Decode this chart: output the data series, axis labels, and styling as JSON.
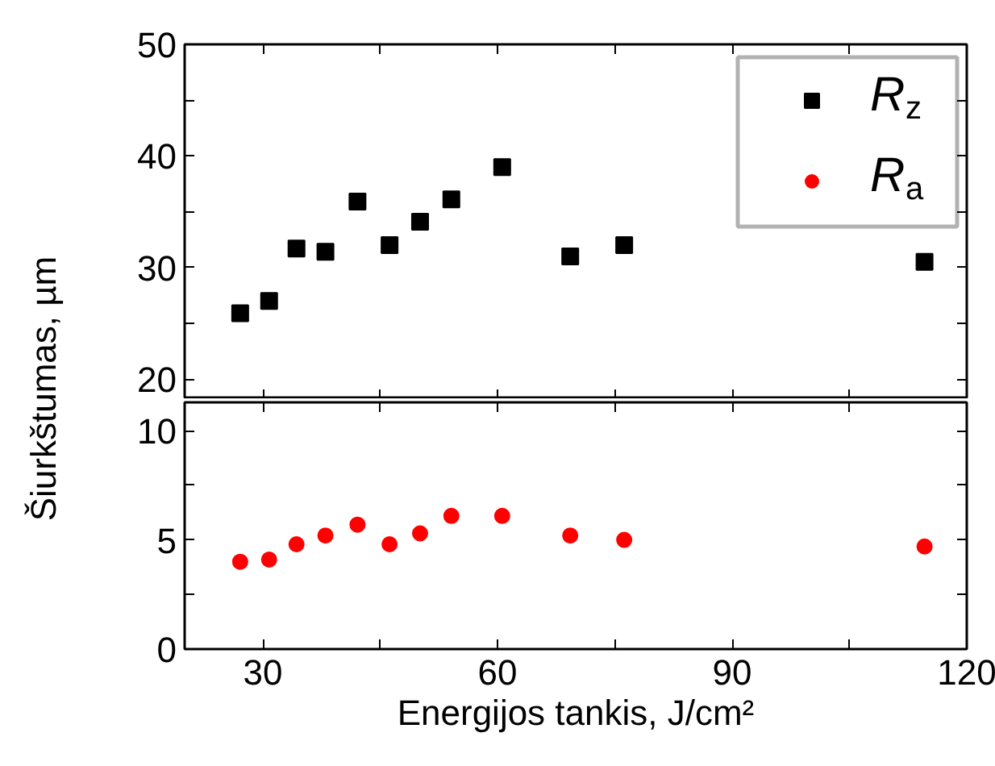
{
  "chart_data": [
    {
      "type": "scatter",
      "ylabel": "Šiurkštumas, µm",
      "xlim": [
        20,
        120
      ],
      "ylim": [
        18.2,
        50
      ],
      "xticks": [
        {
          "value": 30,
          "label": null
        },
        {
          "value": 45,
          "label": null
        },
        {
          "value": 60,
          "label": null
        },
        {
          "value": 75,
          "label": null
        },
        {
          "value": 90,
          "label": null
        },
        {
          "value": 105,
          "label": null
        },
        {
          "value": 120,
          "label": null
        }
      ],
      "yticks": [
        20,
        {
          "value": 25,
          "label": null
        },
        30,
        {
          "value": 35,
          "label": null
        },
        40,
        {
          "value": 45,
          "label": null
        },
        50
      ],
      "tick_labels": "y",
      "grid": false,
      "legend": "top right",
      "marker": "square",
      "series": [
        {
          "name": "R$_{z}$",
          "color": "#000000",
          "x": [
            27.1,
            30.8,
            34.3,
            38.0,
            42.1,
            46.2,
            50.1,
            54.1,
            60.6,
            69.3,
            76.2,
            114.6
          ],
          "values": [
            25.9,
            27.0,
            31.7,
            31.4,
            35.9,
            32.0,
            34.1,
            36.1,
            39.0,
            31.0,
            32.0,
            30.5
          ]
        }
      ]
    },
    {
      "type": "scatter",
      "xlabel": "Energijos tankis, J/cm²",
      "xlim": [
        20,
        120
      ],
      "ylim": [
        0,
        11.3
      ],
      "xticks": [
        30,
        {
          "value": 45,
          "label": null
        },
        60,
        {
          "value": 75,
          "label": null
        },
        90,
        {
          "value": 105,
          "label": null
        },
        120
      ],
      "yticks": [
        0,
        {
          "value": 2.5,
          "label": null
        },
        5,
        {
          "value": 7.5,
          "label": null
        },
        10
      ],
      "grid": false,
      "marker": "circle",
      "series": [
        {
          "name": "R$_{a}$",
          "color": "#ff0000",
          "x": [
            27.1,
            30.8,
            34.3,
            38.0,
            42.1,
            46.2,
            50.1,
            54.1,
            60.6,
            69.3,
            76.2,
            114.6
          ],
          "values": [
            4.0,
            4.1,
            4.8,
            5.2,
            5.7,
            4.8,
            5.3,
            6.1,
            6.1,
            5.2,
            5.0,
            4.7
          ]
        }
      ]
    }
  ]
}
